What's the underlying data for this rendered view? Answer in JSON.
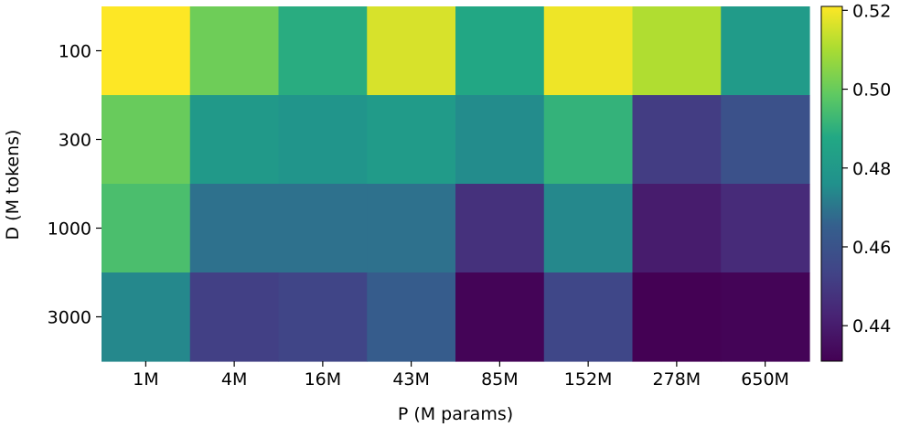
{
  "chart_data": {
    "type": "heatmap",
    "title": "",
    "xlabel": "P (M params)",
    "ylabel": "D (M tokens)",
    "x_categories": [
      "1M",
      "4M",
      "16M",
      "43M",
      "85M",
      "152M",
      "278M",
      "650M"
    ],
    "y_categories": [
      "100",
      "300",
      "1000",
      "3000"
    ],
    "values": [
      [
        0.521,
        0.501,
        0.489,
        0.516,
        0.487,
        0.519,
        0.511,
        0.481
      ],
      [
        0.5,
        0.48,
        0.478,
        0.481,
        0.475,
        0.491,
        0.451,
        0.459
      ],
      [
        0.495,
        0.469,
        0.469,
        0.469,
        0.447,
        0.474,
        0.44,
        0.445
      ],
      [
        0.474,
        0.452,
        0.454,
        0.464,
        0.432,
        0.455,
        0.431,
        0.432
      ]
    ],
    "colormap": "viridis",
    "colorbar": {
      "vmin": 0.431,
      "vmax": 0.521,
      "ticks": [
        0.44,
        0.46,
        0.48,
        0.5,
        0.52
      ],
      "tick_labels": [
        "0.44",
        "0.46",
        "0.48",
        "0.50",
        "0.52"
      ]
    }
  }
}
